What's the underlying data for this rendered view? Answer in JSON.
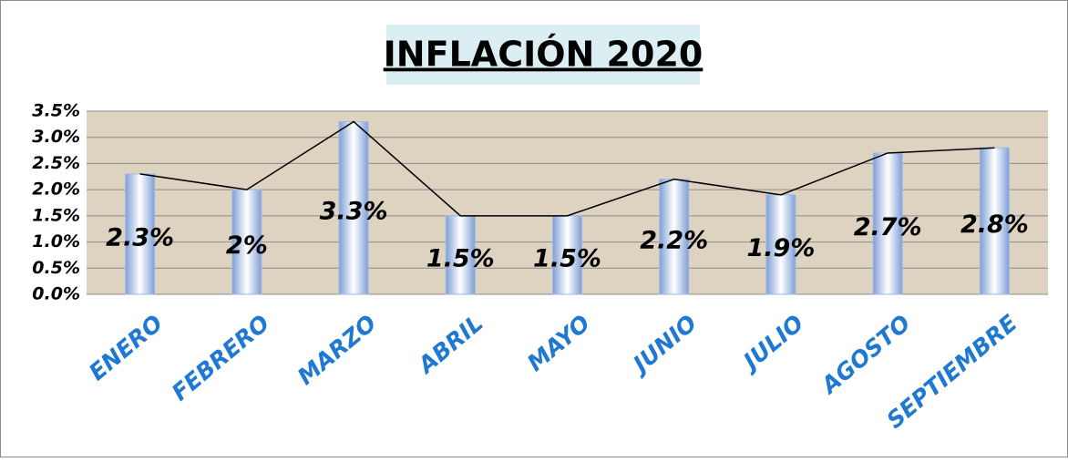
{
  "chart_data": {
    "type": "bar",
    "title": "INFLACIÓN 2020",
    "categories": [
      "ENERO",
      "FEBRERO",
      "MARZO",
      "ABRIL",
      "MAYO",
      "JUNIO",
      "JULIO",
      "AGOSTO",
      "SEPTIEMBRE"
    ],
    "values": [
      2.3,
      2,
      3.3,
      1.5,
      1.5,
      2.2,
      1.9,
      2.7,
      2.8
    ],
    "value_labels": [
      "2.3%",
      "2%",
      "3.3%",
      "1.5%",
      "1.5%",
      "2.2%",
      "1.9%",
      "2.7%",
      "2.8%"
    ],
    "color": "#9db8e8",
    "line_color": "#000000",
    "ylim": [
      0,
      3.5
    ],
    "yticks": [
      {
        "value": 0,
        "label": "0.0%"
      },
      {
        "value": 0.5,
        "label": "0.5%"
      },
      {
        "value": 1,
        "label": "1.0%"
      },
      {
        "value": 1.5,
        "label": "1.5%"
      },
      {
        "value": 2,
        "label": "2.0%"
      },
      {
        "value": 2.5,
        "label": "2.5%"
      },
      {
        "value": 3,
        "label": "3.0%"
      },
      {
        "value": 3.5,
        "label": "3.5%"
      }
    ],
    "grid": true
  }
}
